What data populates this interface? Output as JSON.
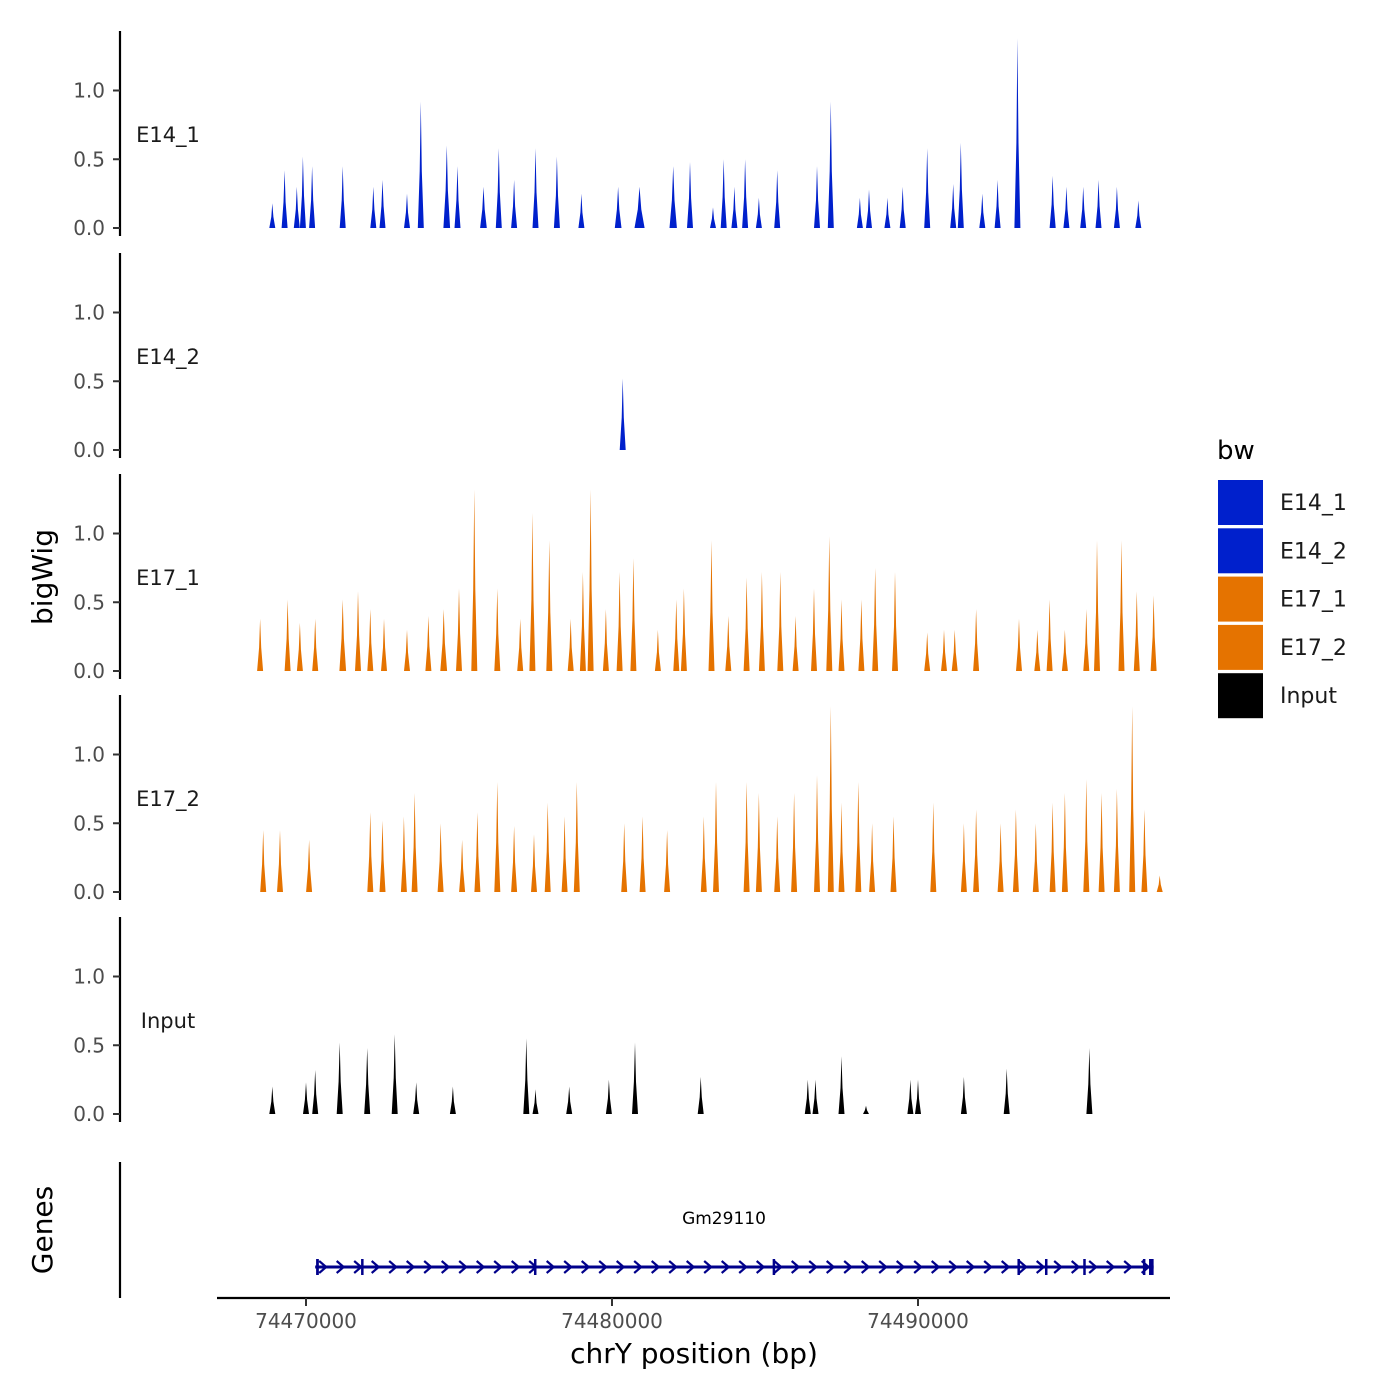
{
  "chart_data": {
    "type": "area",
    "description_axes": "stacked genome coverage tracks",
    "ylabel": "bigWig",
    "xlabel": "chrY position (bp)",
    "genes_label": "Genes",
    "y_ticks": [
      "0.0",
      "0.5",
      "1.0"
    ],
    "ylim": [
      0,
      1.4
    ],
    "xlim": [
      74466800,
      74497900
    ],
    "x_ticks": [
      {
        "value": 74470000,
        "label": "74470000"
      },
      {
        "value": 74480000,
        "label": "74480000"
      },
      {
        "value": 74490000,
        "label": "74490000"
      }
    ],
    "legend": {
      "title": "bw",
      "items": [
        {
          "label": "E14_1",
          "color": "#0020CC"
        },
        {
          "label": "E14_2",
          "color": "#0020CC"
        },
        {
          "label": "E17_1",
          "color": "#E57300"
        },
        {
          "label": "E17_2",
          "color": "#E57300"
        },
        {
          "label": "Input",
          "color": "#000000"
        }
      ]
    },
    "series": [
      {
        "name": "E14_1",
        "color": "#0020CC",
        "peaks": [
          [
            74468900,
            0.18,
            60
          ],
          [
            74469300,
            0.42,
            70
          ],
          [
            74469700,
            0.3,
            60
          ],
          [
            74469900,
            0.52,
            70
          ],
          [
            74470200,
            0.45,
            70
          ],
          [
            74471200,
            0.45,
            50
          ],
          [
            74472200,
            0.3,
            70
          ],
          [
            74472500,
            0.35,
            60
          ],
          [
            74473300,
            0.25,
            80
          ],
          [
            74473750,
            0.92,
            50
          ],
          [
            74474600,
            0.6,
            100
          ],
          [
            74474950,
            0.45,
            80
          ],
          [
            74475800,
            0.3,
            100
          ],
          [
            74476300,
            0.58,
            80
          ],
          [
            74476800,
            0.35,
            80
          ],
          [
            74477500,
            0.58,
            70
          ],
          [
            74478200,
            0.52,
            90
          ],
          [
            74479000,
            0.25,
            80
          ],
          [
            74480200,
            0.3,
            100
          ],
          [
            74480900,
            0.3,
            150
          ],
          [
            74482000,
            0.45,
            110
          ],
          [
            74482550,
            0.48,
            70
          ],
          [
            74483300,
            0.15,
            50
          ],
          [
            74483650,
            0.5,
            80
          ],
          [
            74484000,
            0.3,
            50
          ],
          [
            74484350,
            0.5,
            60
          ],
          [
            74484800,
            0.22,
            60
          ],
          [
            74485400,
            0.42,
            70
          ],
          [
            74486700,
            0.45,
            50
          ],
          [
            74487150,
            0.92,
            70
          ],
          [
            74488100,
            0.22,
            60
          ],
          [
            74488400,
            0.28,
            70
          ],
          [
            74489000,
            0.22,
            50
          ],
          [
            74489500,
            0.3,
            70
          ],
          [
            74490300,
            0.58,
            90
          ],
          [
            74491150,
            0.32,
            60
          ],
          [
            74491400,
            0.62,
            80
          ],
          [
            74492100,
            0.25,
            70
          ],
          [
            74492600,
            0.35,
            70
          ],
          [
            74493250,
            1.38,
            60
          ],
          [
            74494400,
            0.38,
            90
          ],
          [
            74494850,
            0.3,
            70
          ],
          [
            74495400,
            0.3,
            80
          ],
          [
            74495900,
            0.35,
            80
          ],
          [
            74496500,
            0.3,
            70
          ],
          [
            74497200,
            0.2,
            60
          ]
        ]
      },
      {
        "name": "E14_2",
        "color": "#0020CC",
        "peaks": [
          [
            74480350,
            0.52,
            70
          ]
        ]
      },
      {
        "name": "E17_1",
        "color": "#E57300",
        "peaks": [
          [
            74468500,
            0.38,
            70
          ],
          [
            74469400,
            0.52,
            60
          ],
          [
            74469800,
            0.35,
            80
          ],
          [
            74470300,
            0.38,
            70
          ],
          [
            74471200,
            0.52,
            100
          ],
          [
            74471700,
            0.58,
            80
          ],
          [
            74472100,
            0.45,
            60
          ],
          [
            74472550,
            0.38,
            60
          ],
          [
            74473300,
            0.3,
            70
          ],
          [
            74474000,
            0.4,
            80
          ],
          [
            74474500,
            0.45,
            100
          ],
          [
            74475000,
            0.6,
            70
          ],
          [
            74475500,
            1.32,
            70
          ],
          [
            74476250,
            0.6,
            70
          ],
          [
            74477000,
            0.38,
            70
          ],
          [
            74477400,
            1.15,
            60
          ],
          [
            74477950,
            0.95,
            60
          ],
          [
            74478650,
            0.38,
            60
          ],
          [
            74479050,
            0.72,
            50
          ],
          [
            74479300,
            1.32,
            50
          ],
          [
            74479800,
            0.45,
            60
          ],
          [
            74480250,
            0.72,
            60
          ],
          [
            74480700,
            0.82,
            60
          ],
          [
            74481500,
            0.3,
            70
          ],
          [
            74482100,
            0.52,
            60
          ],
          [
            74482350,
            0.6,
            70
          ],
          [
            74483250,
            0.95,
            60
          ],
          [
            74483800,
            0.4,
            60
          ],
          [
            74484400,
            0.68,
            60
          ],
          [
            74484900,
            0.72,
            50
          ],
          [
            74485500,
            0.72,
            60
          ],
          [
            74486000,
            0.4,
            70
          ],
          [
            74486600,
            0.6,
            60
          ],
          [
            74487100,
            0.98,
            60
          ],
          [
            74487500,
            0.52,
            70
          ],
          [
            74488150,
            0.52,
            60
          ],
          [
            74488600,
            0.75,
            60
          ],
          [
            74489250,
            0.72,
            60
          ],
          [
            74490300,
            0.28,
            60
          ],
          [
            74490850,
            0.3,
            70
          ],
          [
            74491200,
            0.3,
            60
          ],
          [
            74491900,
            0.45,
            70
          ],
          [
            74493300,
            0.38,
            70
          ],
          [
            74493900,
            0.3,
            60
          ],
          [
            74494300,
            0.52,
            80
          ],
          [
            74494800,
            0.3,
            60
          ],
          [
            74495500,
            0.45,
            50
          ],
          [
            74495850,
            0.95,
            60
          ],
          [
            74496650,
            0.95,
            80
          ],
          [
            74497150,
            0.58,
            60
          ],
          [
            74497700,
            0.55,
            60
          ]
        ]
      },
      {
        "name": "E17_2",
        "color": "#E57300",
        "peaks": [
          [
            74468600,
            0.45,
            60
          ],
          [
            74469150,
            0.45,
            80
          ],
          [
            74470100,
            0.38,
            60
          ],
          [
            74472100,
            0.58,
            60
          ],
          [
            74472500,
            0.52,
            80
          ],
          [
            74473200,
            0.55,
            70
          ],
          [
            74473550,
            0.72,
            70
          ],
          [
            74474400,
            0.5,
            70
          ],
          [
            74475100,
            0.38,
            60
          ],
          [
            74475600,
            0.58,
            60
          ],
          [
            74476250,
            0.8,
            70
          ],
          [
            74476800,
            0.48,
            50
          ],
          [
            74477450,
            0.42,
            60
          ],
          [
            74477900,
            0.65,
            60
          ],
          [
            74478450,
            0.55,
            60
          ],
          [
            74478850,
            0.8,
            60
          ],
          [
            74480400,
            0.5,
            80
          ],
          [
            74481000,
            0.55,
            60
          ],
          [
            74481800,
            0.45,
            70
          ],
          [
            74483000,
            0.55,
            70
          ],
          [
            74483400,
            0.8,
            70
          ],
          [
            74484400,
            0.8,
            70
          ],
          [
            74484800,
            0.72,
            60
          ],
          [
            74485400,
            0.55,
            70
          ],
          [
            74485950,
            0.72,
            60
          ],
          [
            74486700,
            0.85,
            70
          ],
          [
            74487150,
            1.35,
            70
          ],
          [
            74487500,
            0.65,
            60
          ],
          [
            74488050,
            0.8,
            70
          ],
          [
            74488500,
            0.5,
            60
          ],
          [
            74489200,
            0.55,
            60
          ],
          [
            74490500,
            0.65,
            60
          ],
          [
            74491500,
            0.5,
            60
          ],
          [
            74491900,
            0.6,
            70
          ],
          [
            74492700,
            0.5,
            70
          ],
          [
            74493200,
            0.6,
            80
          ],
          [
            74493850,
            0.5,
            60
          ],
          [
            74494400,
            0.65,
            70
          ],
          [
            74494800,
            0.72,
            70
          ],
          [
            74495500,
            0.82,
            60
          ],
          [
            74496000,
            0.72,
            70
          ],
          [
            74496500,
            0.75,
            60
          ],
          [
            74497000,
            1.35,
            70
          ],
          [
            74497400,
            0.6,
            60
          ],
          [
            74497900,
            0.12,
            40
          ]
        ]
      },
      {
        "name": "Input",
        "color": "#000000",
        "peaks": [
          [
            74468900,
            0.2,
            70
          ],
          [
            74470000,
            0.23,
            60
          ],
          [
            74470300,
            0.32,
            80
          ],
          [
            74471100,
            0.52,
            70
          ],
          [
            74472000,
            0.48,
            50
          ],
          [
            74472900,
            0.58,
            80
          ],
          [
            74473600,
            0.23,
            70
          ],
          [
            74474800,
            0.2,
            70
          ],
          [
            74477200,
            0.55,
            60
          ],
          [
            74477500,
            0.18,
            60
          ],
          [
            74478600,
            0.2,
            60
          ],
          [
            74479900,
            0.25,
            50
          ],
          [
            74480750,
            0.52,
            80
          ],
          [
            74482900,
            0.27,
            70
          ],
          [
            74486400,
            0.25,
            70
          ],
          [
            74486650,
            0.25,
            60
          ],
          [
            74487500,
            0.42,
            60
          ],
          [
            74488300,
            0.06,
            40
          ],
          [
            74489750,
            0.25,
            70
          ],
          [
            74490000,
            0.25,
            50
          ],
          [
            74491500,
            0.27,
            60
          ],
          [
            74492900,
            0.33,
            80
          ],
          [
            74495600,
            0.48,
            70
          ]
        ]
      }
    ],
    "gene": {
      "name": "Gm29110",
      "start": 74470300,
      "end": 74497700,
      "strand": "+",
      "exons": [
        [
          74470330,
          74470420
        ],
        [
          74471800,
          74471880
        ],
        [
          74477450,
          74477500
        ],
        [
          74485250,
          74485300
        ],
        [
          74493250,
          74493330
        ],
        [
          74494150,
          74494200
        ],
        [
          74495400,
          74495450
        ],
        [
          74497350,
          74497400
        ],
        [
          74497550,
          74497700
        ]
      ],
      "color": "#00008B"
    }
  }
}
